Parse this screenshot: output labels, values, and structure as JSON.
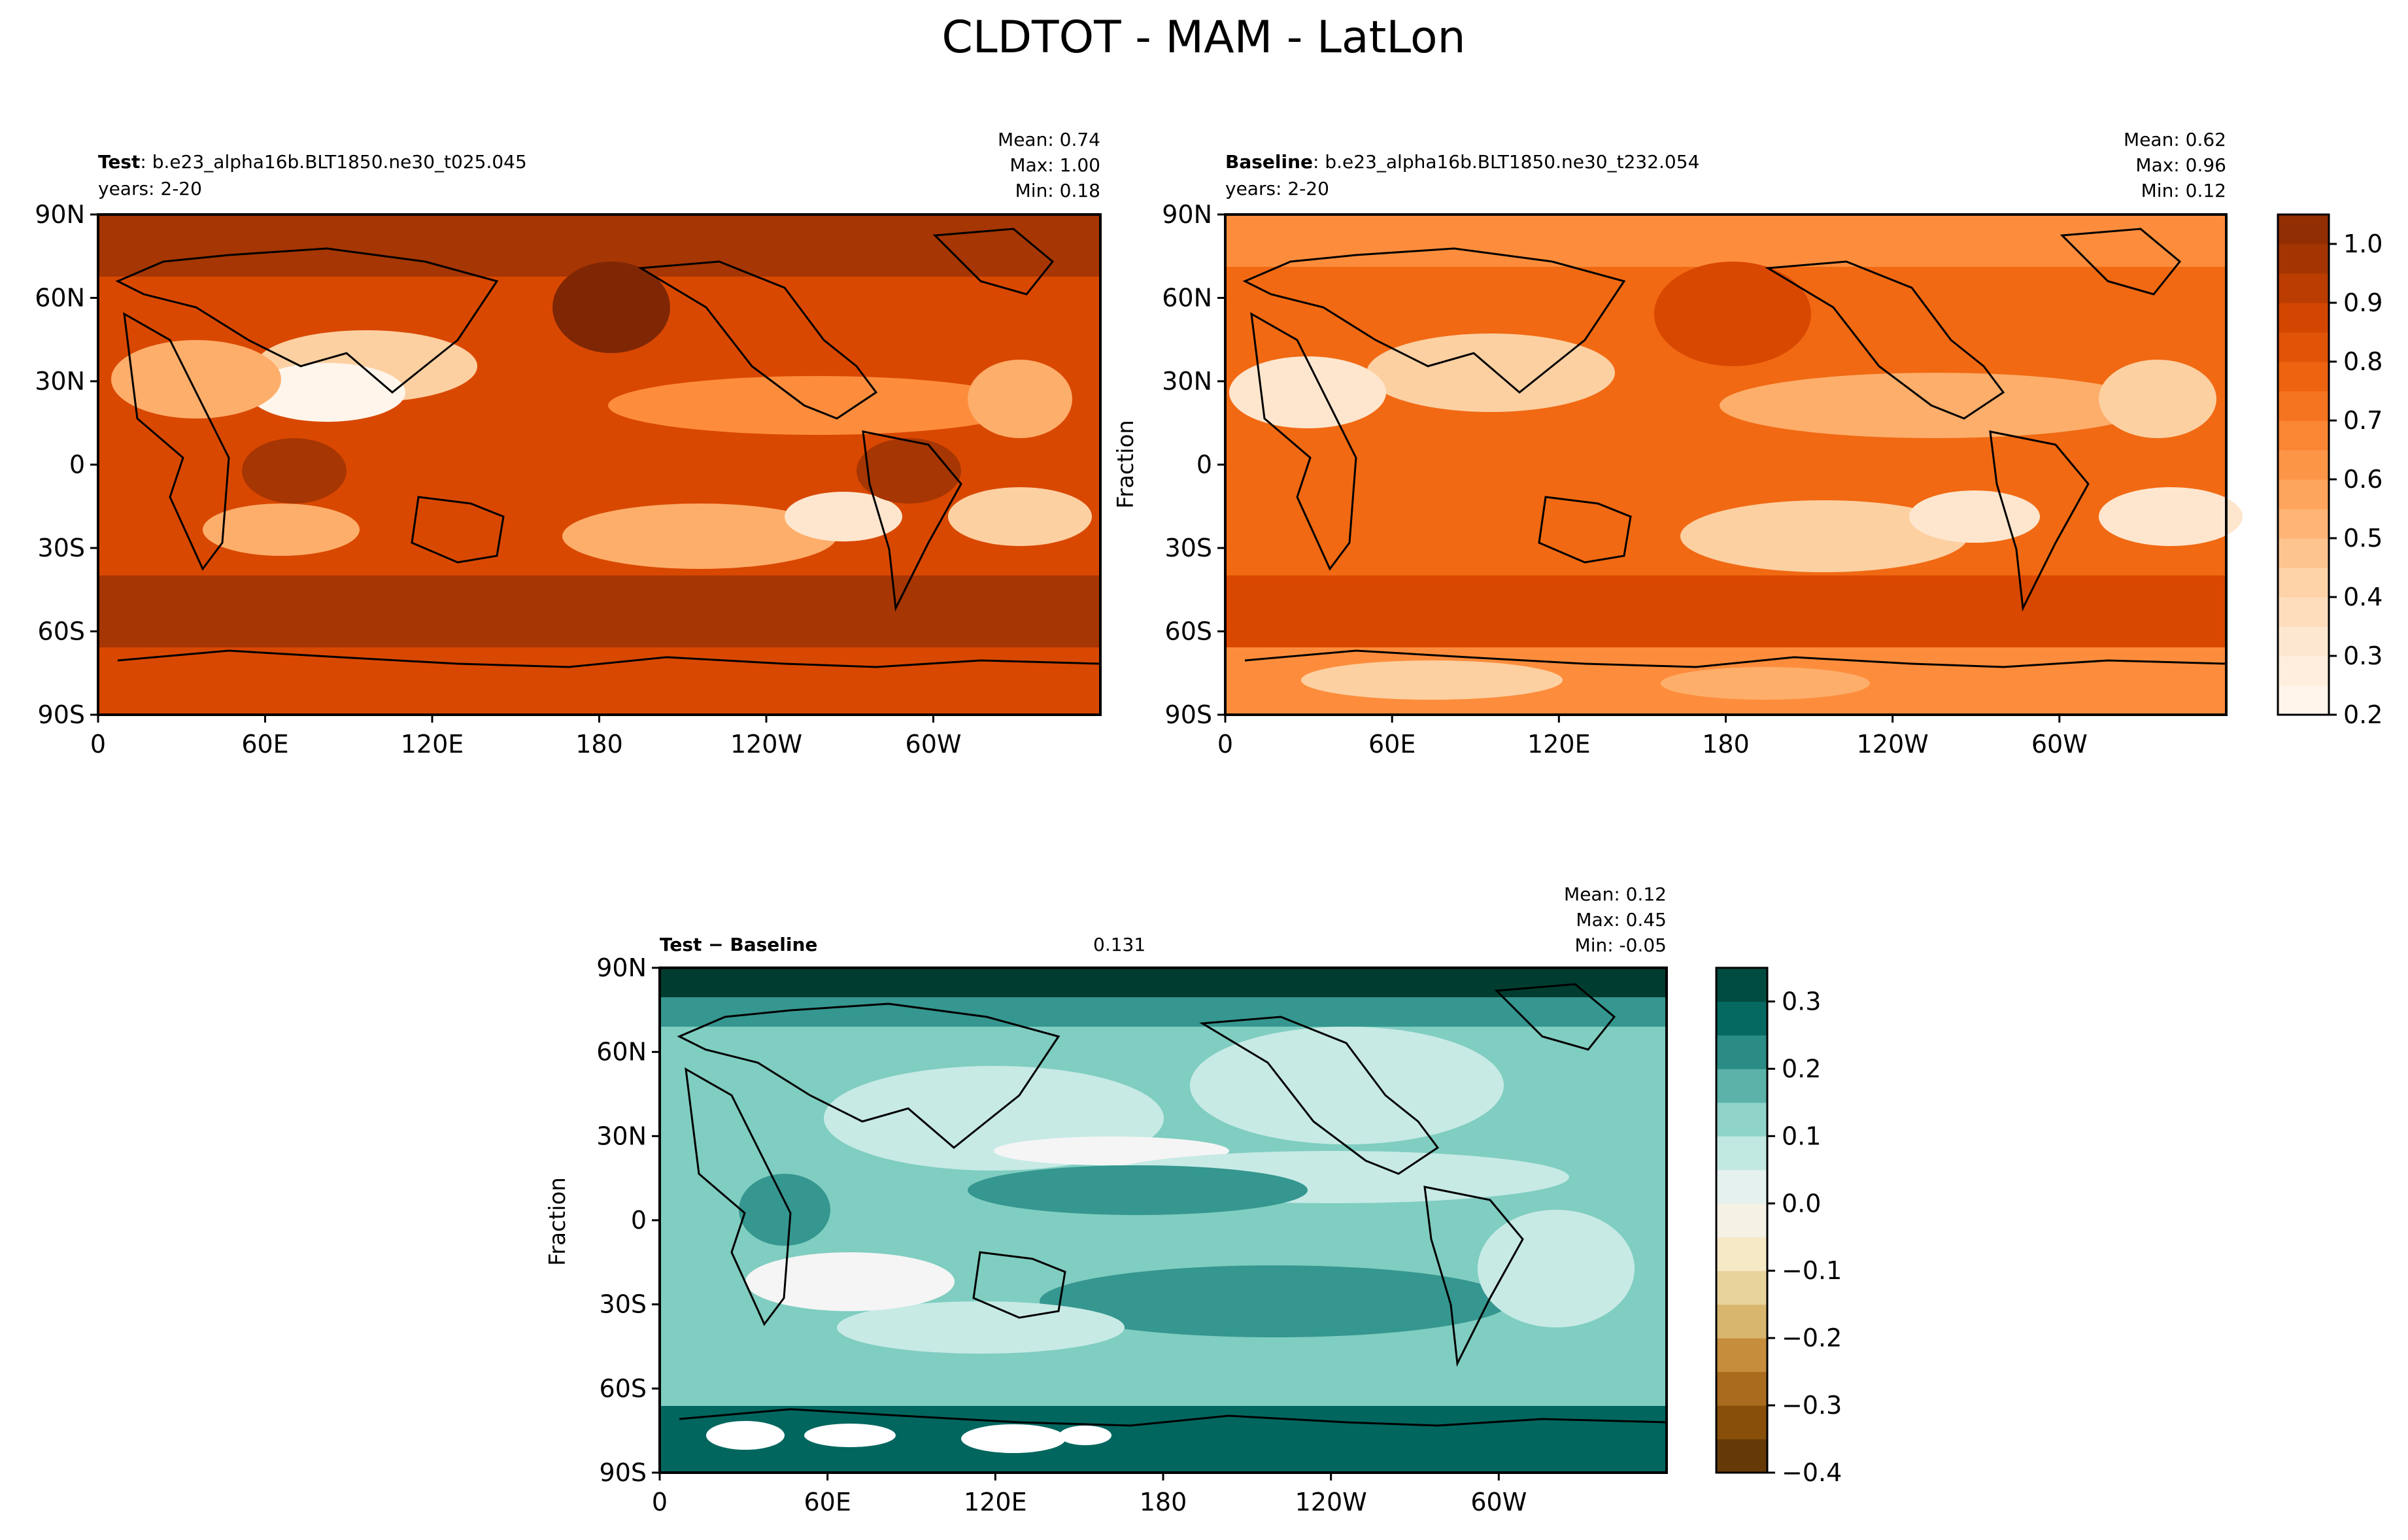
{
  "figure_title": "CLDTOT - MAM - LatLon",
  "colors": {
    "test_cmap": [
      "#fff5eb",
      "#fee6ce",
      "#fdd0a2",
      "#fdae6b",
      "#fd8d3c",
      "#f16913",
      "#d94801",
      "#a63603",
      "#7f2704"
    ],
    "diff_cmap_neg": [
      "#543005",
      "#8c510a",
      "#bf812d",
      "#dfc27d",
      "#f6e8c3",
      "#f5f5f5"
    ],
    "diff_cmap_pos": [
      "#f5f5f5",
      "#c7eae5",
      "#80cdc1",
      "#35978f",
      "#01665e",
      "#003c30"
    ],
    "coast": "#000000"
  },
  "chart_data": [
    {
      "type": "heatmap",
      "name": "test",
      "title_bold": "Test",
      "title_rest": ": b.e23_alpha16b.BLT1850.ne30_t025.045",
      "subtitle": "years: 2-20",
      "stats": {
        "mean": "Mean:  0.74",
        "max": "Max:  1.00",
        "min": "Min:  0.18"
      },
      "xticks": [
        "0",
        "60E",
        "120E",
        "180",
        "120W",
        "60W"
      ],
      "yticks": [
        "90N",
        "60N",
        "30N",
        "0",
        "30S",
        "60S",
        "90S"
      ],
      "xlim": [
        0,
        360
      ],
      "ylim": [
        -90,
        90
      ],
      "zmin": 0.2,
      "zmax": 1.05,
      "mean": 0.74,
      "max": 1.0,
      "min": 0.18
    },
    {
      "type": "heatmap",
      "name": "baseline",
      "title_bold": "Baseline",
      "title_rest": ": b.e23_alpha16b.BLT1850.ne30_t232.054",
      "subtitle": "years: 2-20",
      "stats": {
        "mean": "Mean:  0.62",
        "max": "Max:  0.96",
        "min": "Min:  0.12"
      },
      "ylabel": "Fraction",
      "xticks": [
        "0",
        "60E",
        "120E",
        "180",
        "120W",
        "60W"
      ],
      "yticks": [
        "90N",
        "60N",
        "30N",
        "0",
        "30S",
        "60S",
        "90S"
      ],
      "xlim": [
        0,
        360
      ],
      "ylim": [
        -90,
        90
      ],
      "zmin": 0.2,
      "zmax": 1.05,
      "mean": 0.62,
      "max": 0.96,
      "min": 0.12,
      "colorbar": {
        "ticks": [
          "1.0",
          "0.9",
          "0.8",
          "0.7",
          "0.6",
          "0.5",
          "0.4",
          "0.3",
          "0.2"
        ],
        "range": [
          0.2,
          1.05
        ]
      }
    },
    {
      "type": "heatmap",
      "name": "difference",
      "title_bold": "Test − Baseline",
      "rmse": 0.131,
      "stats": {
        "mean": "Mean:  0.12",
        "max": "Max:  0.45",
        "min": "Min: -0.05"
      },
      "ylabel": "Fraction",
      "xticks": [
        "0",
        "60E",
        "120E",
        "180",
        "120W",
        "60W"
      ],
      "yticks": [
        "90N",
        "60N",
        "30N",
        "0",
        "30S",
        "60S",
        "90S"
      ],
      "xlim": [
        0,
        360
      ],
      "ylim": [
        -90,
        90
      ],
      "zmin": -0.4,
      "zmax": 0.35,
      "mean": 0.12,
      "max": 0.45,
      "min": -0.05,
      "colorbar": {
        "ticks": [
          "0.3",
          "0.2",
          "0.1",
          "0.0",
          "−0.1",
          "−0.2",
          "−0.3",
          "−0.4"
        ],
        "range": [
          -0.4,
          0.35
        ]
      }
    }
  ]
}
